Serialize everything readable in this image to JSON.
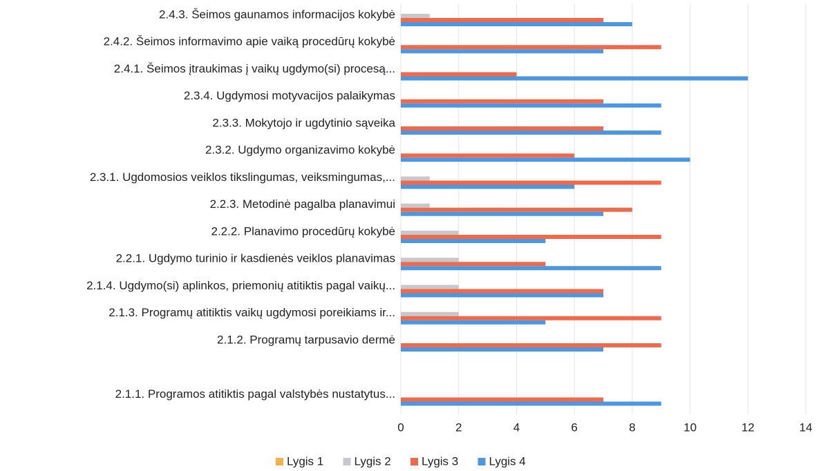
{
  "chart_data": {
    "type": "hbar",
    "categories": [
      "2.4.3. Šeimos gaunamos informacijos kokybė",
      "2.4.2. Šeimos informavimo apie vaiką procedūrų kokybė",
      "2.4.1. Šeimos įtraukimas į vaikų ugdymo(si) procesą...",
      "2.3.4. Ugdymosi motyvacijos palaikymas",
      "2.3.3. Mokytojo ir ugdytinio sąveika",
      "2.3.2. Ugdymo organizavimo kokybė",
      "2.3.1. Ugdomosios veiklos tikslingumas, veiksmingumas,...",
      "2.2.3. Metodinė pagalba planavimui",
      "2.2.2. Planavimo procedūrų kokybė",
      "2.2.1. Ugdymo turinio ir kasdienės veiklos planavimas",
      "2.1.4. Ugdymo(si) aplinkos, priemonių atitiktis pagal vaikų...",
      "2.1.3. Programų atitiktis vaikų ugdymosi poreikiams ir...",
      "2.1.2. Programų tarpusavio dermė",
      null,
      "2.1.1.   Programos atitiktis  pagal valstybės nustatytus..."
    ],
    "series": [
      {
        "name": "Lygis 1",
        "color": "#f4b04c",
        "values": [
          0,
          0,
          0,
          0,
          0,
          0,
          0,
          0,
          0,
          0,
          0,
          0,
          0,
          null,
          0
        ]
      },
      {
        "name": "Lygis 2",
        "color": "#c8c8cc",
        "values": [
          1,
          0,
          0,
          0,
          0,
          0,
          1,
          1,
          2,
          2,
          2,
          2,
          0,
          null,
          0
        ]
      },
      {
        "name": "Lygis 3",
        "color": "#ee6a4a",
        "values": [
          7,
          9,
          4,
          7,
          7,
          6,
          9,
          8,
          9,
          5,
          7,
          9,
          9,
          null,
          7
        ]
      },
      {
        "name": "Lygis 4",
        "color": "#4c97e0",
        "values": [
          8,
          7,
          12,
          9,
          9,
          10,
          6,
          7,
          5,
          9,
          7,
          5,
          7,
          null,
          9
        ]
      }
    ],
    "xlim": [
      0,
      14
    ],
    "xticks": [
      0,
      2,
      4,
      6,
      8,
      10,
      12,
      14
    ],
    "grid": true,
    "legend": "bottom"
  }
}
